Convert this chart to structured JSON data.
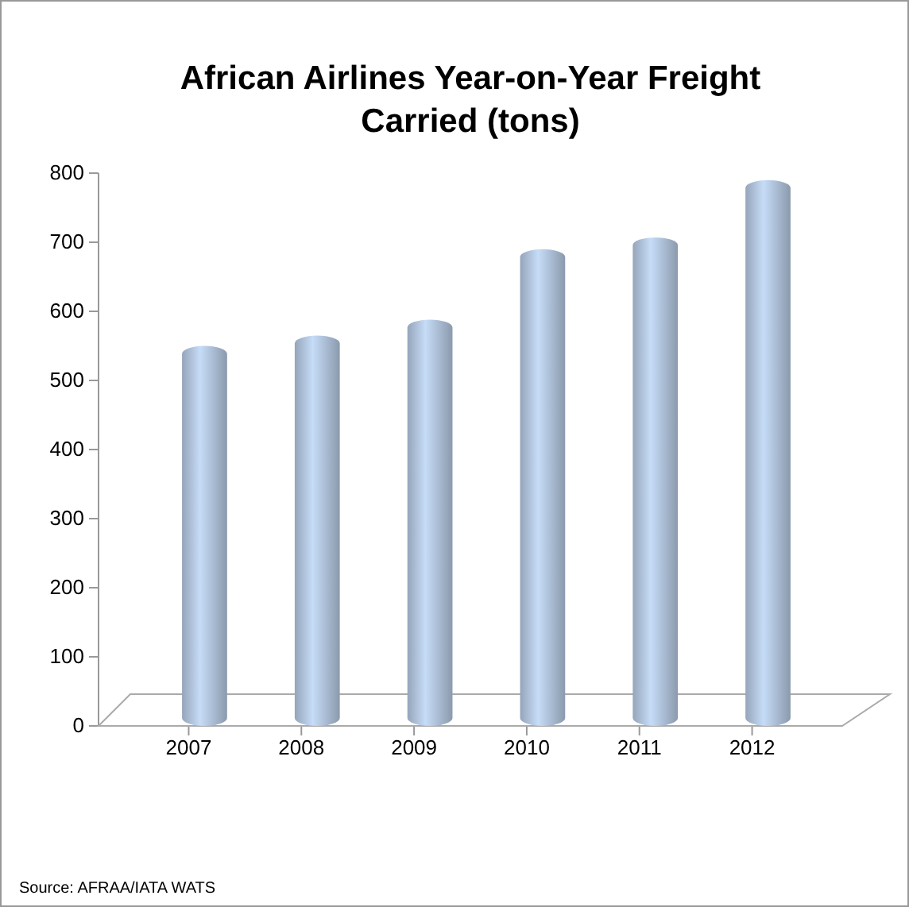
{
  "chart_data": {
    "type": "bar",
    "title": "African Airlines Year-on-Year Freight Carried (tons)",
    "categories": [
      "2007",
      "2008",
      "2009",
      "2010",
      "2011",
      "2012"
    ],
    "values": [
      550,
      565,
      588,
      690,
      707,
      790
    ],
    "color": "#c6dcf7",
    "ylim": [
      0,
      800
    ],
    "yticks": [
      0,
      100,
      200,
      300,
      400,
      500,
      600,
      700,
      800
    ],
    "grid": false,
    "annotations": [
      "Source: AFRAA/IATA WATS"
    ]
  }
}
